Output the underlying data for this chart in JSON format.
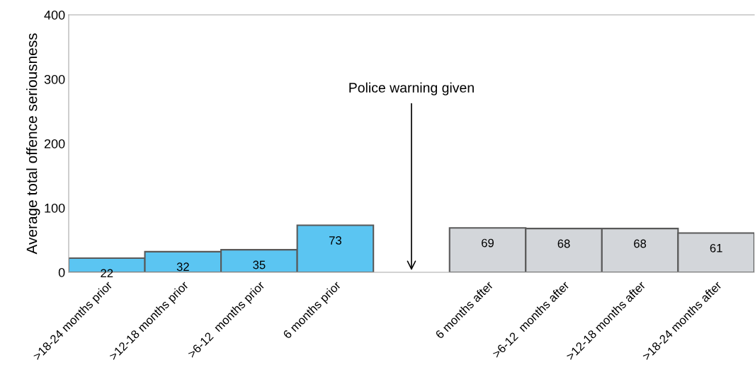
{
  "chart_data": {
    "type": "bar",
    "ylabel": "Average total offence seriousness",
    "categories": [
      ">18-24 months prior",
      ">12-18 months prior",
      ">6-12  months prior",
      "6 months prior",
      null,
      "6 months after",
      ">6-12  months after",
      ">12-18 months after",
      ">18-24 months after"
    ],
    "values": [
      22,
      32,
      35,
      73,
      null,
      69,
      68,
      68,
      61
    ],
    "colors": [
      "#5bc5f2",
      "#5bc5f2",
      "#5bc5f2",
      "#5bc5f2",
      null,
      "#d3d6da",
      "#d3d6da",
      "#d3d6da",
      "#d3d6da"
    ],
    "ylim": [
      0,
      400
    ],
    "yticks": [
      0,
      100,
      200,
      300,
      400
    ],
    "grid": false,
    "data_labels": true,
    "annotations": [
      "Police warning given"
    ]
  }
}
